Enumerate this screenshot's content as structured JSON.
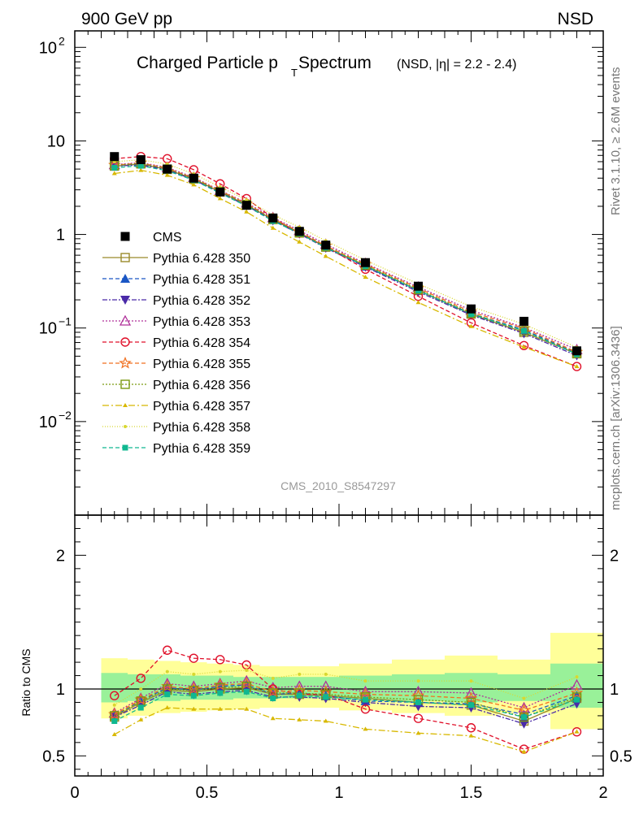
{
  "chart_data": {
    "type": "line",
    "header_left": "900 GeV pp",
    "header_right": "NSD",
    "title_main": "Charged Particle p",
    "title_sub": "T",
    "title_main2": " Spectrum",
    "title_extra": "(NSD, |η| = 2.2 - 2.4)",
    "watermark": "CMS_2010_S8547297",
    "side_label_top": "Rivet 3.1.10, ≥ 2.6M events",
    "side_label_bottom": "mcplots.cern.ch [arXiv:1306.3436]",
    "ratio_ylabel": "Ratio to CMS",
    "xlim": [
      0,
      2
    ],
    "main_ylim": [
      0.001,
      150
    ],
    "main_yscale": "log",
    "ratio_ylim": [
      0.35,
      2.3
    ],
    "xticks": [
      {
        "v": 0,
        "label": "0"
      },
      {
        "v": 0.5,
        "label": "0.5"
      },
      {
        "v": 1,
        "label": "1"
      },
      {
        "v": 1.5,
        "label": "1.5"
      },
      {
        "v": 2,
        "label": "2"
      }
    ],
    "main_yticks": [
      {
        "v": 0.01,
        "base": "10",
        "exp": "−2"
      },
      {
        "v": 0.1,
        "base": "10",
        "exp": "−1"
      },
      {
        "v": 1,
        "base": "1",
        "exp": ""
      },
      {
        "v": 10,
        "base": "10",
        "exp": ""
      },
      {
        "v": 100,
        "base": "10",
        "exp": "2"
      }
    ],
    "ratio_yticks": [
      {
        "v": 0.5,
        "label": "0.5"
      },
      {
        "v": 1,
        "label": "1"
      },
      {
        "v": 2,
        "label": "2"
      }
    ],
    "bins": [
      [
        0.1,
        0.2
      ],
      [
        0.2,
        0.3
      ],
      [
        0.3,
        0.4
      ],
      [
        0.4,
        0.5
      ],
      [
        0.5,
        0.6
      ],
      [
        0.6,
        0.7
      ],
      [
        0.7,
        0.8
      ],
      [
        0.8,
        0.9
      ],
      [
        0.9,
        1.0
      ],
      [
        1.0,
        1.2
      ],
      [
        1.2,
        1.4
      ],
      [
        1.4,
        1.6
      ],
      [
        1.6,
        1.8
      ],
      [
        1.8,
        2.0
      ]
    ],
    "x": [
      0.15,
      0.25,
      0.35,
      0.45,
      0.55,
      0.65,
      0.75,
      0.85,
      0.95,
      1.1,
      1.3,
      1.5,
      1.7,
      1.9
    ],
    "data": {
      "name": "CMS",
      "values": [
        6.8,
        6.3,
        5.0,
        4.0,
        2.85,
        2.05,
        1.5,
        1.08,
        0.77,
        0.5,
        0.28,
        0.16,
        0.118,
        0.057
      ]
    },
    "band_yellow": [
      [
        0.78,
        1.23
      ],
      [
        0.8,
        1.22
      ],
      [
        0.82,
        1.21
      ],
      [
        0.83,
        1.2
      ],
      [
        0.84,
        1.19
      ],
      [
        0.85,
        1.18
      ],
      [
        0.86,
        1.17
      ],
      [
        0.86,
        1.17
      ],
      [
        0.86,
        1.17
      ],
      [
        0.84,
        1.19
      ],
      [
        0.82,
        1.22
      ],
      [
        0.8,
        1.25
      ],
      [
        0.82,
        1.22
      ],
      [
        0.7,
        1.42
      ]
    ],
    "band_green": [
      [
        0.9,
        1.12
      ],
      [
        0.91,
        1.11
      ],
      [
        0.91,
        1.11
      ],
      [
        0.92,
        1.1
      ],
      [
        0.92,
        1.1
      ],
      [
        0.93,
        1.09
      ],
      [
        0.93,
        1.09
      ],
      [
        0.93,
        1.09
      ],
      [
        0.93,
        1.09
      ],
      [
        0.92,
        1.1
      ],
      [
        0.91,
        1.11
      ],
      [
        0.9,
        1.12
      ],
      [
        0.91,
        1.11
      ],
      [
        0.86,
        1.19
      ]
    ],
    "series": [
      {
        "name": "Pythia 6.428 350",
        "color": "#9a8a2a",
        "dash": "",
        "marker": "square-open",
        "ratio": [
          0.79,
          0.9,
          0.99,
          0.98,
          1.0,
          1.01,
          0.96,
          0.96,
          0.95,
          0.93,
          0.9,
          0.88,
          0.76,
          0.93
        ]
      },
      {
        "name": "Pythia 6.428 351",
        "color": "#1a56c4",
        "dash": "5,3",
        "marker": "triangle-up",
        "ratio": [
          0.8,
          0.91,
          1.01,
          0.99,
          1.02,
          1.03,
          0.96,
          0.97,
          0.95,
          0.91,
          0.9,
          0.89,
          0.81,
          0.95
        ]
      },
      {
        "name": "Pythia 6.428 352",
        "color": "#4a2aa8",
        "dash": "6,2,2,2",
        "marker": "triangle-down",
        "ratio": [
          0.79,
          0.88,
          0.98,
          0.96,
          0.98,
          0.99,
          0.94,
          0.94,
          0.93,
          0.9,
          0.87,
          0.86,
          0.74,
          0.89
        ]
      },
      {
        "name": "Pythia 6.428 353",
        "color": "#b0309a",
        "dash": "2,2",
        "marker": "triangle-open",
        "ratio": [
          0.82,
          0.93,
          1.04,
          1.02,
          1.04,
          1.06,
          1.01,
          1.02,
          1.02,
          0.98,
          0.98,
          0.97,
          0.86,
          1.03
        ]
      },
      {
        "name": "Pythia 6.428 354",
        "color": "#e0102a",
        "dash": "5,3",
        "marker": "circle-open",
        "ratio": [
          0.95,
          1.08,
          1.29,
          1.23,
          1.22,
          1.18,
          1.0,
          0.96,
          0.96,
          0.85,
          0.78,
          0.71,
          0.55,
          0.68
        ]
      },
      {
        "name": "Pythia 6.428 355",
        "color": "#f07020",
        "dash": "5,3",
        "marker": "star",
        "ratio": [
          0.81,
          0.92,
          1.02,
          1.0,
          1.03,
          1.04,
          0.98,
          0.99,
          0.98,
          0.96,
          0.95,
          0.93,
          0.84,
          0.97
        ]
      },
      {
        "name": "Pythia 6.428 356",
        "color": "#7a9a10",
        "dash": "2,2",
        "marker": "square-open",
        "ratio": [
          0.8,
          0.91,
          1.0,
          0.99,
          1.01,
          1.02,
          0.97,
          0.97,
          0.96,
          0.94,
          0.92,
          0.9,
          0.79,
          0.94
        ]
      },
      {
        "name": "Pythia 6.428 357",
        "color": "#d8b800",
        "dash": "8,3,2,3",
        "marker": "tri-small",
        "ratio": [
          0.66,
          0.77,
          0.86,
          0.85,
          0.85,
          0.85,
          0.78,
          0.77,
          0.76,
          0.7,
          0.67,
          0.65,
          0.53,
          0.68
        ]
      },
      {
        "name": "Pythia 6.428 358",
        "color": "#d8d830",
        "dash": "1,2",
        "marker": "dot",
        "ratio": [
          0.88,
          1.0,
          1.13,
          1.11,
          1.13,
          1.14,
          1.08,
          1.11,
          1.11,
          1.06,
          1.06,
          1.06,
          0.93,
          1.09
        ]
      },
      {
        "name": "Pythia 6.428 359",
        "color": "#10b890",
        "dash": "5,3",
        "marker": "square",
        "ratio": [
          0.76,
          0.86,
          0.96,
          0.95,
          0.97,
          0.98,
          0.93,
          0.95,
          0.94,
          0.92,
          0.9,
          0.88,
          0.79,
          0.92
        ]
      }
    ]
  }
}
